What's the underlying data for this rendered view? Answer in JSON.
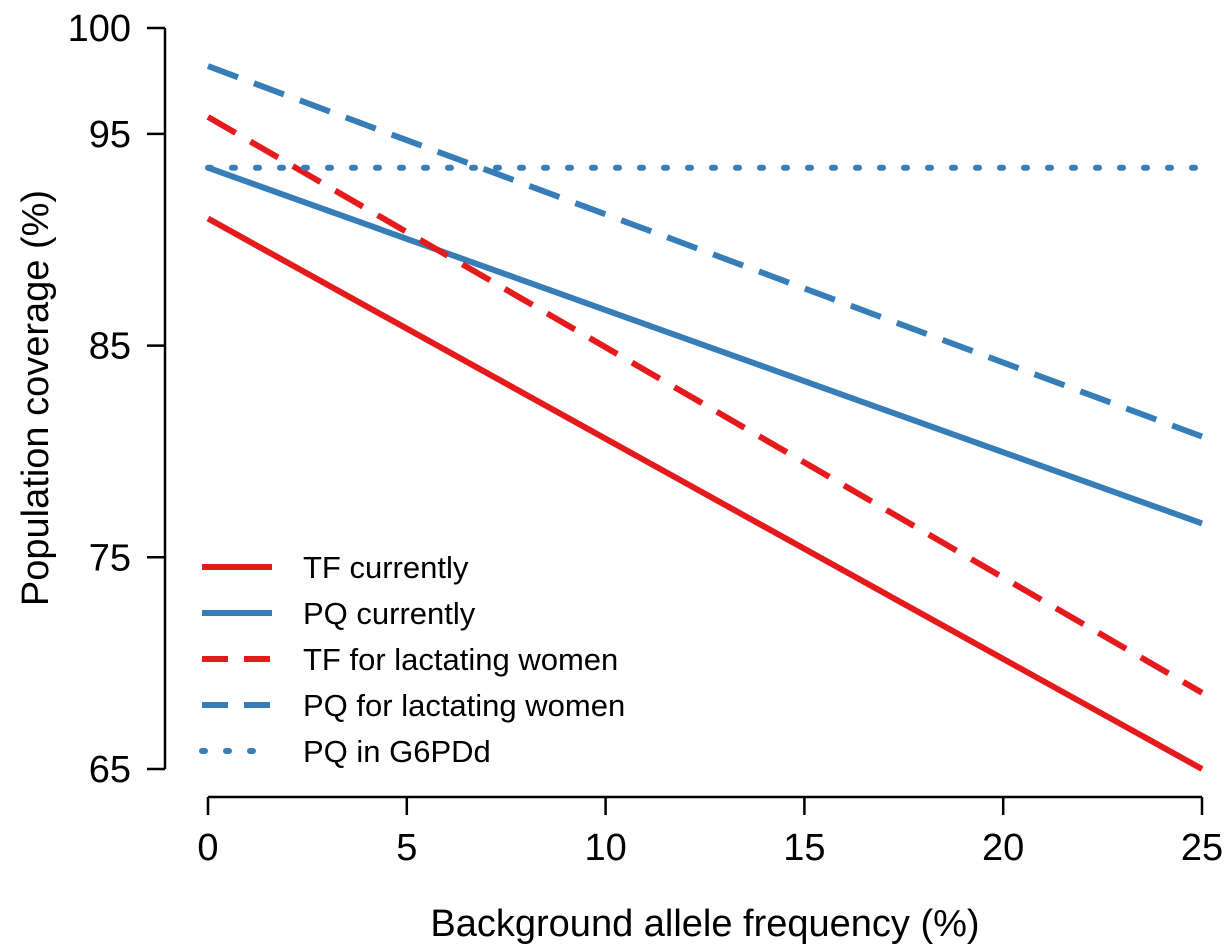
{
  "chart_data": {
    "type": "line",
    "title": "",
    "xlabel": "Background allele frequency (%)",
    "ylabel": "Population coverage (%)",
    "xlim": [
      0,
      25
    ],
    "ylim": [
      65,
      100
    ],
    "x_ticks": [
      "0",
      "5",
      "10",
      "15",
      "20",
      "25"
    ],
    "y_ticks": [
      "65",
      "75",
      "85",
      "95",
      "100"
    ],
    "grid": false,
    "legend_position": "bottom-left",
    "colors": {
      "red": "#E41A1C",
      "blue": "#377EB8"
    },
    "series": [
      {
        "name": "TF currently",
        "color": "#E41A1C",
        "style": "solid",
        "x": [
          0,
          25
        ],
        "y": [
          91.0,
          65.0
        ]
      },
      {
        "name": "PQ currently",
        "color": "#377EB8",
        "style": "solid",
        "x": [
          0,
          25
        ],
        "y": [
          93.4,
          76.6
        ]
      },
      {
        "name": "TF for lactating women",
        "color": "#E41A1C",
        "style": "dashed",
        "x": [
          0,
          25
        ],
        "y": [
          95.8,
          68.6
        ]
      },
      {
        "name": "PQ for lactating women",
        "color": "#377EB8",
        "style": "dashed",
        "x": [
          0,
          25
        ],
        "y": [
          98.2,
          80.7
        ]
      },
      {
        "name": "PQ in G6PDd",
        "color": "#377EB8",
        "style": "dotted",
        "x": [
          0,
          25
        ],
        "y": [
          93.4,
          93.4
        ]
      }
    ]
  }
}
